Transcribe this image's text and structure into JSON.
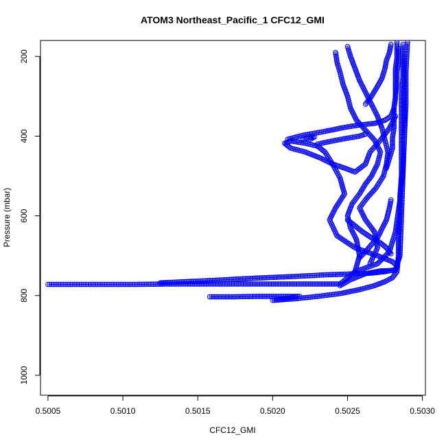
{
  "chart_data": {
    "type": "scatter",
    "title": "ATOM3 Northeast_Pacific_1 CFC12_GMI",
    "xlabel": "CFC12_GMI",
    "ylabel": "Pressure (mbar)",
    "xlim": [
      0.50045,
      0.50302
    ],
    "ylim": [
      1050,
      160
    ],
    "y_reversed": true,
    "xticks": [
      {
        "value": 0.5005,
        "label": "0.5005"
      },
      {
        "value": 0.501,
        "label": "0.5010"
      },
      {
        "value": 0.5015,
        "label": "0.5015"
      },
      {
        "value": 0.502,
        "label": "0.5020"
      },
      {
        "value": 0.5025,
        "label": "0.5025"
      },
      {
        "value": 0.503,
        "label": "0.5030"
      }
    ],
    "yticks": [
      {
        "value": 200,
        "label": "200"
      },
      {
        "value": 400,
        "label": "400"
      },
      {
        "value": 600,
        "label": "600"
      },
      {
        "value": 800,
        "label": "800"
      },
      {
        "value": 1000,
        "label": "1000"
      }
    ],
    "grid": false,
    "legend": "none",
    "marker": "open-circle",
    "color": "#0000ff",
    "series": [
      {
        "points": [
          [
            0.5005,
            772
          ],
          [
            0.5007,
            772
          ],
          [
            0.5009,
            772
          ],
          [
            0.5011,
            772
          ],
          [
            0.5013,
            771
          ],
          [
            0.5015,
            771
          ],
          [
            0.5017,
            771
          ],
          [
            0.5019,
            771
          ],
          [
            0.5021,
            771
          ],
          [
            0.5023,
            771
          ],
          [
            0.50245,
            771
          ],
          [
            0.50255,
            740
          ],
          [
            0.5027,
            720
          ],
          [
            0.50278,
            690
          ],
          [
            0.50282,
            640
          ],
          [
            0.50285,
            560
          ],
          [
            0.50287,
            480
          ],
          [
            0.50288,
            400
          ],
          [
            0.50289,
            320
          ],
          [
            0.50289,
            240
          ],
          [
            0.5029,
            165
          ]
        ]
      },
      {
        "points": [
          [
            0.50125,
            768
          ],
          [
            0.5016,
            762
          ],
          [
            0.5019,
            756
          ],
          [
            0.50215,
            752
          ],
          [
            0.50235,
            748
          ],
          [
            0.5025,
            746
          ],
          [
            0.50265,
            744
          ],
          [
            0.50275,
            740
          ],
          [
            0.50282,
            735
          ],
          [
            0.50285,
            700
          ],
          [
            0.50286,
            600
          ],
          [
            0.50287,
            500
          ],
          [
            0.50288,
            400
          ],
          [
            0.50288,
            300
          ],
          [
            0.50288,
            200
          ]
        ]
      },
      {
        "points": [
          [
            0.50158,
            803
          ],
          [
            0.50175,
            803
          ],
          [
            0.5019,
            802
          ],
          [
            0.50205,
            802
          ],
          [
            0.50218,
            802
          ],
          [
            0.502,
            812
          ],
          [
            0.50215,
            808
          ],
          [
            0.5023,
            802
          ],
          [
            0.50245,
            795
          ],
          [
            0.50258,
            785
          ],
          [
            0.50268,
            775
          ],
          [
            0.50275,
            765
          ],
          [
            0.5028,
            755
          ],
          [
            0.50283,
            740
          ],
          [
            0.50284,
            700
          ],
          [
            0.50284,
            650
          ],
          [
            0.50285,
            600
          ],
          [
            0.50285,
            550
          ],
          [
            0.50286,
            500
          ],
          [
            0.50286,
            450
          ],
          [
            0.50286,
            400
          ],
          [
            0.50286,
            350
          ],
          [
            0.50286,
            300
          ],
          [
            0.50287,
            250
          ],
          [
            0.50287,
            200
          ],
          [
            0.50287,
            170
          ]
        ]
      },
      {
        "points": [
          [
            0.50245,
            775
          ],
          [
            0.50252,
            760
          ],
          [
            0.50262,
            745
          ],
          [
            0.50272,
            738
          ],
          [
            0.50282,
            737
          ],
          [
            0.50283,
            725
          ],
          [
            0.5028,
            715
          ],
          [
            0.5027,
            700
          ],
          [
            0.50255,
            680
          ],
          [
            0.50243,
            650
          ],
          [
            0.50238,
            610
          ],
          [
            0.50242,
            580
          ],
          [
            0.50248,
            545
          ],
          [
            0.50245,
            505
          ],
          [
            0.5024,
            470
          ],
          [
            0.50235,
            440
          ],
          [
            0.5023,
            425
          ],
          [
            0.50222,
            418
          ],
          [
            0.50212,
            412
          ],
          [
            0.50208,
            418
          ],
          [
            0.50212,
            430
          ],
          [
            0.50222,
            440
          ],
          [
            0.50232,
            455
          ],
          [
            0.5024,
            470
          ],
          [
            0.50248,
            480
          ],
          [
            0.50255,
            490
          ],
          [
            0.50262,
            470
          ],
          [
            0.50265,
            440
          ],
          [
            0.50272,
            410
          ],
          [
            0.50278,
            380
          ],
          [
            0.50282,
            350
          ]
        ]
      },
      {
        "points": [
          [
            0.5021,
            408
          ],
          [
            0.5022,
            398
          ],
          [
            0.50235,
            388
          ],
          [
            0.50248,
            378
          ],
          [
            0.50258,
            372
          ],
          [
            0.50268,
            368
          ],
          [
            0.50275,
            360
          ],
          [
            0.50279,
            350
          ],
          [
            0.50281,
            330
          ],
          [
            0.50282,
            300
          ],
          [
            0.50283,
            270
          ],
          [
            0.50283,
            240
          ],
          [
            0.50284,
            210
          ],
          [
            0.50284,
            180
          ]
        ]
      },
      {
        "points": [
          [
            0.5022,
            408
          ],
          [
            0.50225,
            403
          ],
          [
            0.50228,
            402
          ],
          [
            0.50225,
            408
          ]
        ]
      },
      {
        "points": [
          [
            0.50255,
            740
          ],
          [
            0.50258,
            700
          ],
          [
            0.50256,
            660
          ],
          [
            0.50252,
            630
          ],
          [
            0.5025,
            600
          ],
          [
            0.50253,
            570
          ],
          [
            0.50258,
            545
          ],
          [
            0.50262,
            520
          ],
          [
            0.50266,
            500
          ],
          [
            0.5027,
            470
          ],
          [
            0.50272,
            440
          ],
          [
            0.50268,
            410
          ],
          [
            0.50262,
            385
          ],
          [
            0.50256,
            360
          ],
          [
            0.50252,
            330
          ],
          [
            0.5025,
            300
          ],
          [
            0.50247,
            270
          ],
          [
            0.50245,
            240
          ],
          [
            0.50243,
            215
          ],
          [
            0.50242,
            190
          ]
        ]
      },
      {
        "points": [
          [
            0.50265,
            720
          ],
          [
            0.5027,
            680
          ],
          [
            0.50268,
            640
          ],
          [
            0.50262,
            610
          ],
          [
            0.50258,
            580
          ],
          [
            0.50263,
            555
          ],
          [
            0.50269,
            530
          ],
          [
            0.50274,
            500
          ],
          [
            0.50276,
            470
          ],
          [
            0.50277,
            440
          ],
          [
            0.50275,
            410
          ],
          [
            0.50273,
            380
          ],
          [
            0.5027,
            350
          ],
          [
            0.50266,
            320
          ],
          [
            0.50262,
            290
          ],
          [
            0.50258,
            260
          ],
          [
            0.50255,
            230
          ],
          [
            0.50252,
            200
          ],
          [
            0.5025,
            175
          ]
        ]
      },
      {
        "points": [
          [
            0.50262,
            320
          ],
          [
            0.50266,
            300
          ],
          [
            0.5027,
            275
          ],
          [
            0.50273,
            255
          ],
          [
            0.50275,
            230
          ],
          [
            0.50276,
            210
          ],
          [
            0.50278,
            190
          ],
          [
            0.50279,
            170
          ]
        ]
      },
      {
        "points": [
          [
            0.50276,
            480
          ],
          [
            0.50278,
            455
          ],
          [
            0.5028,
            430
          ],
          [
            0.5028,
            405
          ],
          [
            0.50281,
            380
          ],
          [
            0.50281,
            355
          ],
          [
            0.50281,
            330
          ],
          [
            0.50282,
            305
          ],
          [
            0.50282,
            280
          ],
          [
            0.50282,
            255
          ],
          [
            0.50282,
            230
          ],
          [
            0.50283,
            205
          ],
          [
            0.50283,
            180
          ],
          [
            0.50283,
            165
          ]
        ]
      },
      {
        "points": [
          [
            0.5023,
            420
          ],
          [
            0.5024,
            412
          ],
          [
            0.5025,
            405
          ],
          [
            0.50258,
            400
          ],
          [
            0.50262,
            395
          ]
        ]
      },
      {
        "points": [
          [
            0.50258,
            705
          ],
          [
            0.50262,
            690
          ],
          [
            0.50266,
            672
          ],
          [
            0.5027,
            655
          ],
          [
            0.50272,
            640
          ],
          [
            0.50274,
            625
          ],
          [
            0.50276,
            610
          ],
          [
            0.50277,
            595
          ],
          [
            0.50278,
            580
          ],
          [
            0.50279,
            560
          ]
        ]
      },
      {
        "points": [
          [
            0.5025,
            610
          ],
          [
            0.50255,
            625
          ],
          [
            0.5026,
            640
          ],
          [
            0.50266,
            655
          ],
          [
            0.50272,
            668
          ],
          [
            0.50276,
            680
          ],
          [
            0.50279,
            695
          ]
        ]
      }
    ]
  }
}
